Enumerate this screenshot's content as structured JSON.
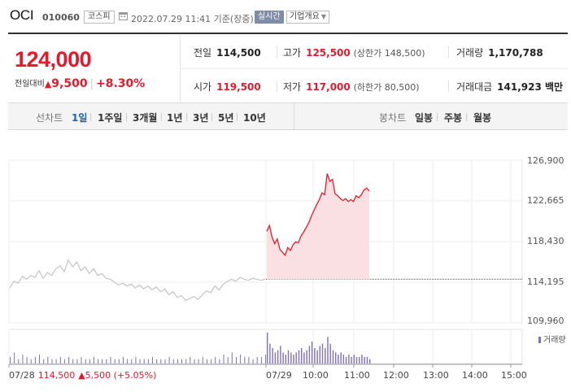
{
  "stock": {
    "name": "OCI",
    "code": "010060",
    "market": "코스피",
    "timestamp": "2022.07.29 11:41 기준(장중)",
    "realtime": "실시간",
    "company_info": "기업개요",
    "price": "124,000",
    "change_label": "전일대비",
    "change_amount": "9,500",
    "change_pct": "+8.30%"
  },
  "stats": {
    "prev_close": {
      "label": "전일",
      "value": "114,500"
    },
    "high": {
      "label": "고가",
      "value": "125,500",
      "note": "(상한가 148,500)"
    },
    "volume": {
      "label": "거래량",
      "value": "1,170,788"
    },
    "open": {
      "label": "시가",
      "value": "119,500"
    },
    "low": {
      "label": "저가",
      "value": "117,000",
      "note": "(하한가 80,500)"
    },
    "amount": {
      "label": "거래대금",
      "value": "141,923 백만"
    }
  },
  "tabs": {
    "line_label": "선차트",
    "line_periods": [
      "1일",
      "1주일",
      "3개월",
      "1년",
      "3년",
      "5년",
      "10년"
    ],
    "active": "1일",
    "candle_label": "봉차트",
    "candle_periods": [
      "일봉",
      "주봉",
      "월봉"
    ]
  },
  "chart_data": {
    "type": "line",
    "y_ticks": [
      "126,900",
      "122,665",
      "118,430",
      "114,195",
      "109,960"
    ],
    "ylim": [
      109960,
      126900
    ],
    "x_ticks": [
      "07/28",
      "07/29",
      "10:00",
      "11:00",
      "12:00",
      "13:00",
      "14:00",
      "15:00"
    ],
    "prev_close": 114500,
    "series": [
      {
        "values_prev_day": [
          113600,
          114300,
          114100,
          114800,
          114500,
          114900,
          114700,
          115400,
          114600,
          115200,
          114900,
          115600,
          115900,
          115300,
          116500,
          115800,
          116300,
          115400,
          115800,
          115100,
          115600,
          114900,
          115100,
          114600,
          114500,
          114200,
          113900,
          114100,
          113800,
          114000,
          113600,
          113900,
          113500,
          113800,
          113400,
          113700,
          113200,
          113500,
          112900,
          113200,
          112600,
          112800,
          112300,
          112500,
          112700,
          112400,
          112900,
          113300,
          113100,
          113800,
          113400,
          114000,
          114300,
          114500,
          114300,
          114700,
          114500,
          114400,
          114600,
          114500,
          114400,
          114500
        ],
        "values_today": [
          119500,
          120100,
          118900,
          118200,
          118700,
          117600,
          117300,
          117000,
          117800,
          117500,
          118100,
          118400,
          118300,
          119000,
          119400,
          119900,
          120400,
          121100,
          121700,
          122300,
          122800,
          123500,
          123300,
          125500,
          124700,
          124900,
          123400,
          123200,
          122900,
          122700,
          122900,
          122600,
          122800,
          122600,
          123200,
          123000,
          123300,
          123800,
          124000,
          123700
        ]
      }
    ],
    "volume_legend": "거래량",
    "volume_prev_day": [
      3,
      5,
      2,
      4,
      3,
      2,
      3,
      4,
      2,
      3,
      2,
      2,
      3,
      2,
      3,
      2,
      2,
      3,
      2,
      2,
      3,
      2,
      2,
      2,
      3,
      2,
      2,
      3,
      2,
      2,
      3,
      2,
      2,
      2,
      3,
      2,
      2,
      2,
      3,
      2,
      2,
      2,
      2,
      3,
      2,
      2,
      3,
      2,
      2,
      3,
      2,
      4,
      3,
      5,
      3,
      4,
      3,
      3,
      2,
      3,
      3,
      4
    ],
    "volume_today": [
      14,
      9,
      7,
      5,
      6,
      8,
      5,
      4,
      6,
      5,
      4,
      5,
      6,
      7,
      5,
      6,
      8,
      10,
      7,
      6,
      8,
      9,
      7,
      12,
      9,
      6,
      5,
      4,
      5,
      4,
      3,
      4,
      3,
      4,
      3,
      3,
      4,
      3,
      3,
      2
    ],
    "footer": {
      "date": "07/28",
      "price": "114,500",
      "change": "▲5,500 (+5.05%)"
    }
  },
  "colors": {
    "up": "#e6192b",
    "down": "#1a5dc9",
    "line_today": "#e6192b",
    "fill_today": "#fbe0e3",
    "line_prev": "#c8c8c8",
    "volume": "#7b72b8"
  }
}
